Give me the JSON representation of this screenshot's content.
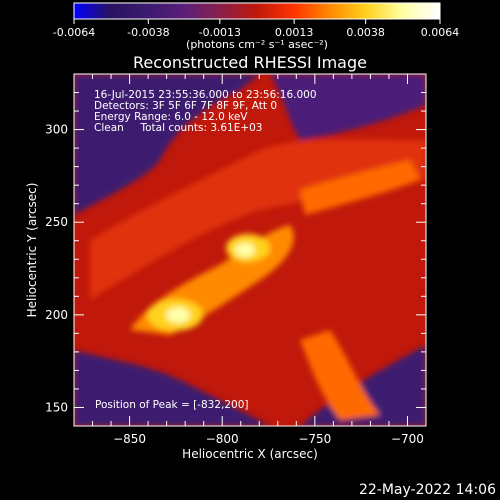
{
  "colorbar": {
    "tick_labels": [
      "-0.0064",
      "-0.0038",
      "-0.0013",
      "0.0013",
      "0.0038",
      "0.0064"
    ],
    "tick_values": [
      -0.0064,
      -0.0038,
      -0.0013,
      0.0013,
      0.0038,
      0.0064
    ],
    "range": [
      -0.0064,
      0.0064
    ],
    "unit_label": "(photons cm⁻² s⁻¹ asec⁻²)",
    "colors": [
      "#0000ff",
      "#2a1260",
      "#3c1a70",
      "#5a1f7a",
      "#8a1f4a",
      "#c0180a",
      "#ff3300",
      "#ff8a00",
      "#ffd21f",
      "#ffffa8",
      "#ffffff"
    ]
  },
  "plot": {
    "title": "Reconstructed RHESSI Image",
    "xlabel": "Heliocentric X (arcsec)",
    "ylabel": "Heliocentric Y (arcsec)",
    "info_lines": [
      "16-Jul-2015 23:55:36.000 to 23:56:16.000",
      "Detectors: 3F 5F 6F 7F 8F 9F, Att 0",
      "Energy Range: 6.0 - 12.0 keV",
      "Clean     Total counts: 3.61E+03"
    ],
    "peak_label": "Position of Peak = [-832,200]",
    "footer_date": "22-May-2022 14:06"
  },
  "chart_data": {
    "type": "heatmap",
    "title": "Reconstructed RHESSI Image",
    "xlabel": "Heliocentric X (arcsec)",
    "ylabel": "Heliocentric Y (arcsec)",
    "xlim": [
      -880,
      -690
    ],
    "ylim": [
      140,
      330
    ],
    "xticks": [
      -850,
      -800,
      -750,
      -700
    ],
    "xtick_labels": [
      "−850",
      "−800",
      "−750",
      "−700"
    ],
    "yticks": [
      150,
      200,
      250,
      300
    ],
    "ytick_labels": [
      "150",
      "200",
      "250",
      "300"
    ],
    "colorbar_range": [
      -0.0064,
      0.0064
    ],
    "peak": {
      "x": -832,
      "y": 200
    },
    "grid": false
  }
}
